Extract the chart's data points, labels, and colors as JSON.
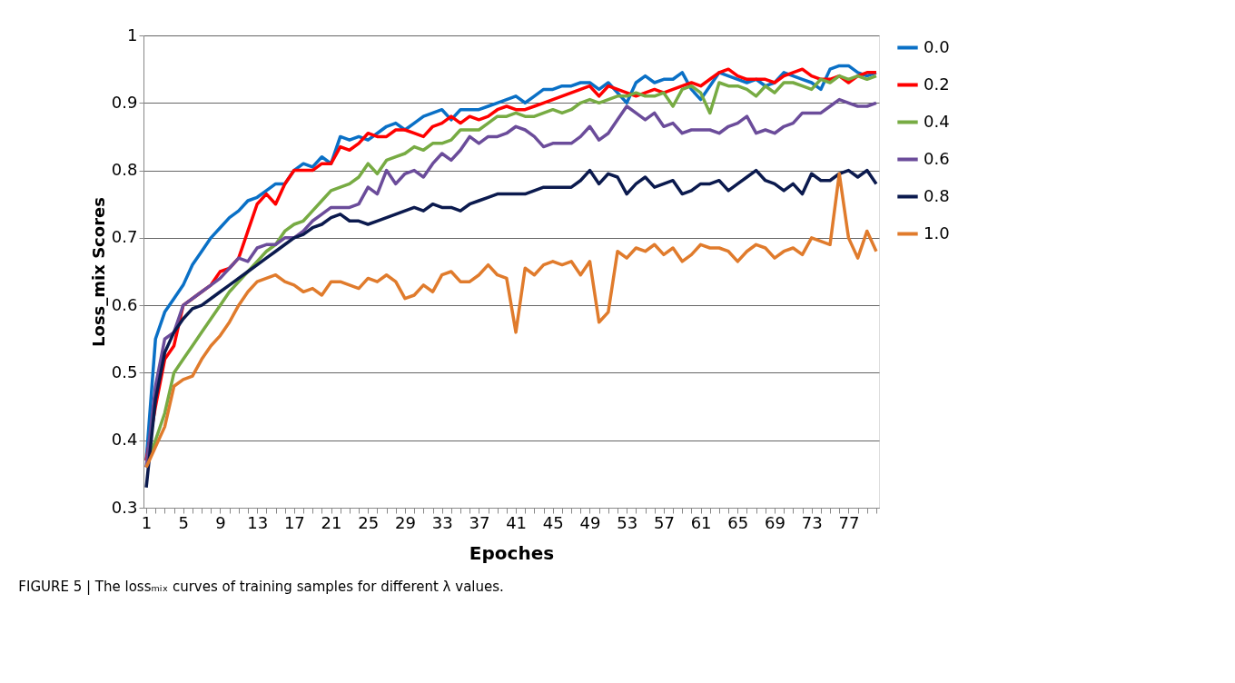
{
  "chart_data": {
    "type": "line",
    "xlabel": "Epoches",
    "ylabel": "Loss_mix Scores",
    "annotations": [
      "FIGURE 5 | The lossₘᵢₓ curves of training samples for different λ values."
    ],
    "categories": [
      "1",
      null,
      null,
      null,
      "5",
      null,
      null,
      null,
      "9",
      null,
      null,
      null,
      "13",
      null,
      null,
      null,
      "17",
      null,
      null,
      null,
      "21",
      null,
      null,
      null,
      "25",
      null,
      null,
      null,
      "29",
      null,
      null,
      null,
      "33",
      null,
      null,
      null,
      "37",
      null,
      null,
      null,
      "41",
      null,
      null,
      null,
      "45",
      null,
      null,
      null,
      "49",
      null,
      null,
      null,
      "53",
      null,
      null,
      null,
      "57",
      null,
      null,
      null,
      "61",
      null,
      null,
      null,
      "65",
      null,
      null,
      null,
      "69",
      null,
      null,
      null,
      "73",
      null,
      null,
      null,
      "77",
      null,
      null,
      null
    ],
    "ylim": [
      0.3,
      1
    ],
    "yticks": [
      0.3,
      0.4,
      0.5,
      0.6,
      0.7,
      0.8,
      0.9,
      {
        "value": 1,
        "label": "1"
      }
    ],
    "grid": "y",
    "legend": "right",
    "line_style": "solid",
    "marker": "none",
    "series": [
      {
        "name": "0.0",
        "color": "#0a70c6",
        "values": [
          0.37,
          0.55,
          0.59,
          0.61,
          0.63,
          0.66,
          0.68,
          0.7,
          0.715,
          0.73,
          0.74,
          0.755,
          0.76,
          0.77,
          0.78,
          0.78,
          0.8,
          0.81,
          0.805,
          0.82,
          0.81,
          0.85,
          0.845,
          0.85,
          0.845,
          0.855,
          0.865,
          0.87,
          0.86,
          0.87,
          0.88,
          0.885,
          0.89,
          0.875,
          0.89,
          0.89,
          0.89,
          0.895,
          0.9,
          0.905,
          0.91,
          0.9,
          0.91,
          0.92,
          0.92,
          0.925,
          0.925,
          0.93,
          0.93,
          0.92,
          0.93,
          0.915,
          0.9,
          0.93,
          0.94,
          0.93,
          0.935,
          0.935,
          0.945,
          0.92,
          0.905,
          0.925,
          0.945,
          0.94,
          0.935,
          0.93,
          0.935,
          0.925,
          0.93,
          0.945,
          0.94,
          0.935,
          0.93,
          0.92,
          0.95,
          0.955,
          0.955,
          0.945,
          0.94,
          0.945
        ]
      },
      {
        "name": "0.2",
        "color": "#ff0000",
        "values": [
          0.37,
          0.45,
          0.52,
          0.54,
          0.6,
          0.61,
          0.62,
          0.63,
          0.65,
          0.655,
          0.67,
          0.71,
          0.75,
          0.765,
          0.75,
          0.78,
          0.8,
          0.8,
          0.8,
          0.81,
          0.81,
          0.835,
          0.83,
          0.84,
          0.855,
          0.85,
          0.85,
          0.86,
          0.86,
          0.855,
          0.85,
          0.865,
          0.87,
          0.88,
          0.87,
          0.88,
          0.875,
          0.88,
          0.89,
          0.895,
          0.89,
          0.89,
          0.895,
          0.9,
          0.905,
          0.91,
          0.915,
          0.92,
          0.925,
          0.91,
          0.925,
          0.92,
          0.915,
          0.91,
          0.915,
          0.92,
          0.915,
          0.92,
          0.925,
          0.93,
          0.925,
          0.935,
          0.945,
          0.95,
          0.94,
          0.935,
          0.935,
          0.935,
          0.93,
          0.94,
          0.945,
          0.95,
          0.94,
          0.935,
          0.935,
          0.94,
          0.93,
          0.94,
          0.945,
          0.945
        ]
      },
      {
        "name": "0.4",
        "color": "#77ab43",
        "values": [
          0.36,
          0.4,
          0.44,
          0.5,
          0.52,
          0.54,
          0.56,
          0.58,
          0.6,
          0.62,
          0.635,
          0.65,
          0.665,
          0.68,
          0.69,
          0.71,
          0.72,
          0.725,
          0.74,
          0.755,
          0.77,
          0.775,
          0.78,
          0.79,
          0.81,
          0.795,
          0.815,
          0.82,
          0.825,
          0.835,
          0.83,
          0.84,
          0.84,
          0.845,
          0.86,
          0.86,
          0.86,
          0.87,
          0.88,
          0.88,
          0.885,
          0.88,
          0.88,
          0.885,
          0.89,
          0.885,
          0.89,
          0.9,
          0.905,
          0.9,
          0.905,
          0.91,
          0.91,
          0.915,
          0.91,
          0.91,
          0.915,
          0.895,
          0.92,
          0.925,
          0.915,
          0.885,
          0.93,
          0.925,
          0.925,
          0.92,
          0.91,
          0.925,
          0.915,
          0.93,
          0.93,
          0.925,
          0.92,
          0.935,
          0.93,
          0.94,
          0.935,
          0.94,
          0.935,
          0.94
        ]
      },
      {
        "name": "0.6",
        "color": "#6b4c9a",
        "values": [
          0.36,
          0.48,
          0.55,
          0.56,
          0.6,
          0.61,
          0.62,
          0.63,
          0.64,
          0.655,
          0.67,
          0.665,
          0.685,
          0.69,
          0.69,
          0.7,
          0.7,
          0.71,
          0.725,
          0.735,
          0.745,
          0.745,
          0.745,
          0.75,
          0.775,
          0.765,
          0.8,
          0.78,
          0.795,
          0.8,
          0.79,
          0.81,
          0.825,
          0.815,
          0.83,
          0.85,
          0.84,
          0.85,
          0.85,
          0.855,
          0.865,
          0.86,
          0.85,
          0.835,
          0.84,
          0.84,
          0.84,
          0.85,
          0.865,
          0.845,
          0.855,
          0.875,
          0.895,
          0.885,
          0.875,
          0.885,
          0.865,
          0.87,
          0.855,
          0.86,
          0.86,
          0.86,
          0.855,
          0.865,
          0.87,
          0.88,
          0.855,
          0.86,
          0.855,
          0.865,
          0.87,
          0.885,
          0.885,
          0.885,
          0.895,
          0.905,
          0.9,
          0.895,
          0.895,
          0.9
        ]
      },
      {
        "name": "0.8",
        "color": "#0b1a4e",
        "values": [
          0.33,
          0.46,
          0.53,
          0.56,
          0.58,
          0.595,
          0.6,
          0.61,
          0.62,
          0.63,
          0.64,
          0.65,
          0.66,
          0.67,
          0.68,
          0.69,
          0.7,
          0.705,
          0.715,
          0.72,
          0.73,
          0.735,
          0.725,
          0.725,
          0.72,
          0.725,
          0.73,
          0.735,
          0.74,
          0.745,
          0.74,
          0.75,
          0.745,
          0.745,
          0.74,
          0.75,
          0.755,
          0.76,
          0.765,
          0.765,
          0.765,
          0.765,
          0.77,
          0.775,
          0.775,
          0.775,
          0.775,
          0.785,
          0.8,
          0.78,
          0.795,
          0.79,
          0.765,
          0.78,
          0.79,
          0.775,
          0.78,
          0.785,
          0.765,
          0.77,
          0.78,
          0.78,
          0.785,
          0.77,
          0.78,
          0.79,
          0.8,
          0.785,
          0.78,
          0.77,
          0.78,
          0.765,
          0.795,
          0.785,
          0.785,
          0.795,
          0.8,
          0.79,
          0.8,
          0.78
        ]
      },
      {
        "name": "1.0",
        "color": "#e07b2c",
        "values": [
          0.36,
          0.39,
          0.42,
          0.48,
          0.49,
          0.495,
          0.52,
          0.54,
          0.555,
          0.575,
          0.6,
          0.62,
          0.635,
          0.64,
          0.645,
          0.635,
          0.63,
          0.62,
          0.625,
          0.615,
          0.635,
          0.635,
          0.63,
          0.625,
          0.64,
          0.635,
          0.645,
          0.635,
          0.61,
          0.615,
          0.63,
          0.62,
          0.645,
          0.65,
          0.635,
          0.635,
          0.645,
          0.66,
          0.645,
          0.64,
          0.56,
          0.655,
          0.645,
          0.66,
          0.665,
          0.66,
          0.665,
          0.645,
          0.665,
          0.575,
          0.59,
          0.68,
          0.67,
          0.685,
          0.68,
          0.69,
          0.675,
          0.685,
          0.665,
          0.675,
          0.69,
          0.685,
          0.685,
          0.68,
          0.665,
          0.68,
          0.69,
          0.685,
          0.67,
          0.68,
          0.685,
          0.675,
          0.7,
          0.695,
          0.69,
          0.795,
          0.7,
          0.67,
          0.71,
          0.68
        ]
      }
    ]
  }
}
